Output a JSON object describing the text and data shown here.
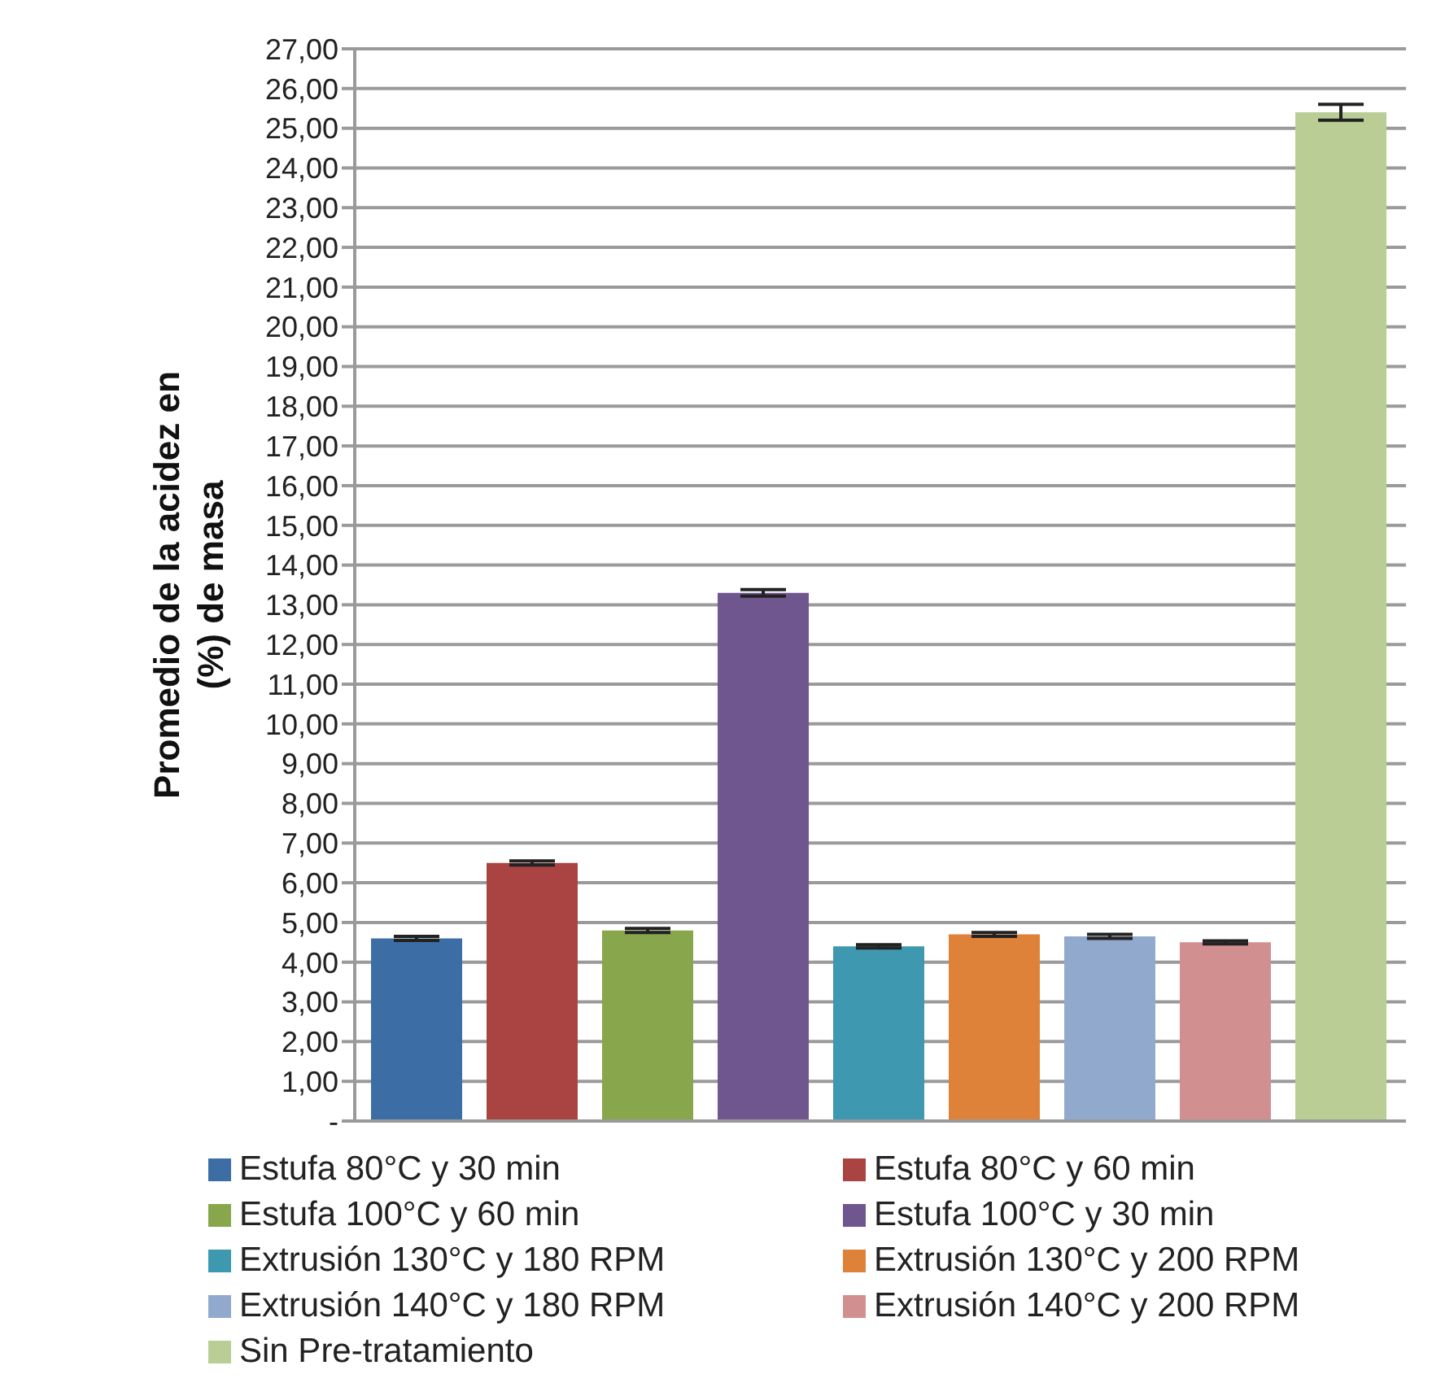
{
  "chart_data": {
    "type": "bar",
    "ylabel": "Promedio de la acidez en (%) de masa",
    "categories": [
      null
    ],
    "series": [
      {
        "name": "Estufa 80°C y 30 min",
        "color": "#3c6ea5",
        "values": [
          4.6
        ],
        "errors": [
          0.05
        ]
      },
      {
        "name": "Estufa 80°C y 60 min",
        "color": "#a94442",
        "values": [
          6.5
        ],
        "errors": [
          0.05
        ]
      },
      {
        "name": "Estufa 100°C y 60 min",
        "color": "#88a64b",
        "values": [
          4.8
        ],
        "errors": [
          0.05
        ]
      },
      {
        "name": "Estufa 100°C y 30 min",
        "color": "#6f568e",
        "values": [
          13.3
        ],
        "errors": [
          0.08
        ]
      },
      {
        "name": "Extrusión 130°C y 180 RPM",
        "color": "#3d98b0",
        "values": [
          4.4
        ],
        "errors": [
          0.04
        ]
      },
      {
        "name": "Extrusión 130°C y 200 RPM",
        "color": "#df8239",
        "values": [
          4.7
        ],
        "errors": [
          0.05
        ]
      },
      {
        "name": "Extrusión 140°C y 180 RPM",
        "color": "#91a9cd",
        "values": [
          4.65
        ],
        "errors": [
          0.05
        ]
      },
      {
        "name": "Extrusión 140°C y 200 RPM",
        "color": "#d18f90",
        "values": [
          4.5
        ],
        "errors": [
          0.04
        ]
      },
      {
        "name": "Sin Pre-tratamiento",
        "color": "#b9cd95",
        "values": [
          25.4
        ],
        "errors": [
          0.2
        ]
      }
    ],
    "ylim": [
      0,
      27
    ],
    "yticks": [
      {
        "value": 0,
        "label": "-"
      },
      {
        "value": 1,
        "label": "1,00"
      },
      {
        "value": 2,
        "label": "2,00"
      },
      {
        "value": 3,
        "label": "3,00"
      },
      {
        "value": 4,
        "label": "4,00"
      },
      {
        "value": 5,
        "label": "5,00"
      },
      {
        "value": 6,
        "label": "6,00"
      },
      {
        "value": 7,
        "label": "7,00"
      },
      {
        "value": 8,
        "label": "8,00"
      },
      {
        "value": 9,
        "label": "9,00"
      },
      {
        "value": 10,
        "label": "10,00"
      },
      {
        "value": 11,
        "label": "11,00"
      },
      {
        "value": 12,
        "label": "12,00"
      },
      {
        "value": 13,
        "label": "13,00"
      },
      {
        "value": 14,
        "label": "14,00"
      },
      {
        "value": 15,
        "label": "15,00"
      },
      {
        "value": 16,
        "label": "16,00"
      },
      {
        "value": 17,
        "label": "17,00"
      },
      {
        "value": 18,
        "label": "18,00"
      },
      {
        "value": 19,
        "label": "19,00"
      },
      {
        "value": 20,
        "label": "20,00"
      },
      {
        "value": 21,
        "label": "21,00"
      },
      {
        "value": 22,
        "label": "22,00"
      },
      {
        "value": 23,
        "label": "23,00"
      },
      {
        "value": 24,
        "label": "24,00"
      },
      {
        "value": 25,
        "label": "25,00"
      },
      {
        "value": 26,
        "label": "26,00"
      },
      {
        "value": 27,
        "label": "27,00"
      }
    ],
    "grid": "y",
    "legend": "bottom"
  }
}
